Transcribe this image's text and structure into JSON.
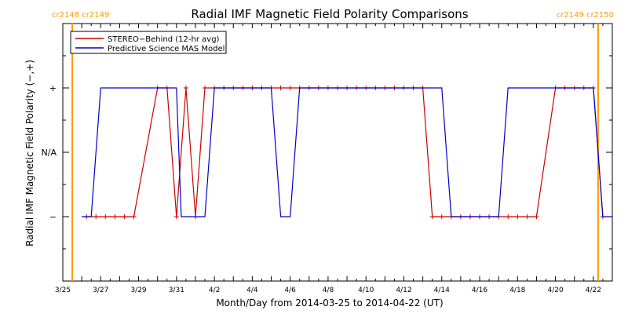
{
  "chart_data": {
    "type": "line",
    "title": "Radial IMF Magnetic Field Polarity Comparisons",
    "xlabel": "Month/Day from 2014-03-25 to 2014-04-22 (UT)",
    "ylabel": "Radial IMF Magnetic Field Polarity (−,+)",
    "x_unit": "days from 2014-03-25",
    "xlim": [
      0,
      29
    ],
    "x_ticks": [
      {
        "x": 0,
        "label": "3/25"
      },
      {
        "x": 2,
        "label": "3/27"
      },
      {
        "x": 4,
        "label": "3/29"
      },
      {
        "x": 6,
        "label": "3/31"
      },
      {
        "x": 8,
        "label": "4/2"
      },
      {
        "x": 10,
        "label": "4/4"
      },
      {
        "x": 12,
        "label": "4/6"
      },
      {
        "x": 14,
        "label": "4/8"
      },
      {
        "x": 16,
        "label": "4/10"
      },
      {
        "x": 18,
        "label": "4/12"
      },
      {
        "x": 20,
        "label": "4/14"
      },
      {
        "x": 22,
        "label": "4/16"
      },
      {
        "x": 24,
        "label": "4/18"
      },
      {
        "x": 26,
        "label": "4/20"
      },
      {
        "x": 28,
        "label": "4/22"
      }
    ],
    "y_ticks": [
      {
        "y": 1,
        "label": "+"
      },
      {
        "y": 0,
        "label": "N/A"
      },
      {
        "y": -1,
        "label": "−"
      }
    ],
    "ylim": [
      -2,
      2
    ],
    "markers": [
      {
        "x": 0.5,
        "label": "cr2148 cr2149"
      },
      {
        "x": 28.25,
        "label": "cr2149 cr2150"
      }
    ],
    "legend_position": "top-left",
    "series": [
      {
        "name": "STEREO−Behind (12-hr avg)",
        "color": "#cc0000",
        "points": [
          [
            1.25,
            -1
          ],
          [
            1.75,
            -1
          ],
          [
            2.25,
            -1
          ],
          [
            2.75,
            -1
          ],
          [
            3.25,
            -1
          ],
          [
            3.75,
            -1
          ],
          [
            5.0,
            1
          ],
          [
            5.5,
            1
          ],
          [
            6.0,
            -1
          ],
          [
            6.5,
            1
          ],
          [
            7.0,
            -1
          ],
          [
            7.5,
            1
          ],
          [
            8.0,
            1
          ],
          [
            8.5,
            1
          ],
          [
            9.0,
            1
          ],
          [
            9.5,
            1
          ],
          [
            10.0,
            1
          ],
          [
            10.5,
            1
          ],
          [
            11.0,
            1
          ],
          [
            11.5,
            1
          ],
          [
            12.0,
            1
          ],
          [
            12.5,
            1
          ],
          [
            13.0,
            1
          ],
          [
            13.5,
            1
          ],
          [
            14.0,
            1
          ],
          [
            14.5,
            1
          ],
          [
            15.0,
            1
          ],
          [
            15.5,
            1
          ],
          [
            16.0,
            1
          ],
          [
            16.5,
            1
          ],
          [
            17.0,
            1
          ],
          [
            17.5,
            1
          ],
          [
            18.0,
            1
          ],
          [
            18.5,
            1
          ],
          [
            19.0,
            1
          ],
          [
            19.5,
            -1
          ],
          [
            20.0,
            -1
          ],
          [
            20.5,
            -1
          ],
          [
            21.0,
            -1
          ],
          [
            21.5,
            -1
          ],
          [
            22.0,
            -1
          ],
          [
            22.5,
            -1
          ],
          [
            23.0,
            -1
          ],
          [
            23.5,
            -1
          ],
          [
            24.0,
            -1
          ],
          [
            24.5,
            -1
          ],
          [
            25.0,
            -1
          ],
          [
            26.0,
            1
          ],
          [
            26.5,
            1
          ],
          [
            27.0,
            1
          ],
          [
            27.5,
            1
          ],
          [
            28.0,
            1
          ],
          [
            28.5,
            -1
          ]
        ]
      },
      {
        "name": "Predictive Science MAS Model",
        "color": "#0000cc",
        "points": [
          [
            1.0,
            -1
          ],
          [
            1.5,
            -1
          ],
          [
            2.0,
            1
          ],
          [
            2.5,
            1
          ],
          [
            3.0,
            1
          ],
          [
            3.5,
            1
          ],
          [
            4.0,
            1
          ],
          [
            4.5,
            1
          ],
          [
            5.0,
            1
          ],
          [
            5.5,
            1
          ],
          [
            6.0,
            1
          ],
          [
            6.25,
            -1
          ],
          [
            6.5,
            -1
          ],
          [
            7.5,
            -1
          ],
          [
            8.0,
            1
          ],
          [
            8.5,
            1
          ],
          [
            9.0,
            1
          ],
          [
            9.5,
            1
          ],
          [
            10.0,
            1
          ],
          [
            10.5,
            1
          ],
          [
            11.0,
            1
          ],
          [
            11.5,
            -1
          ],
          [
            12.0,
            -1
          ],
          [
            12.5,
            1
          ],
          [
            13.0,
            1
          ],
          [
            13.5,
            1
          ],
          [
            14.0,
            1
          ],
          [
            14.5,
            1
          ],
          [
            15.0,
            1
          ],
          [
            15.5,
            1
          ],
          [
            16.0,
            1
          ],
          [
            16.5,
            1
          ],
          [
            17.0,
            1
          ],
          [
            17.5,
            1
          ],
          [
            18.0,
            1
          ],
          [
            18.5,
            1
          ],
          [
            19.0,
            1
          ],
          [
            19.5,
            1
          ],
          [
            20.0,
            1
          ],
          [
            20.5,
            -1
          ],
          [
            21.0,
            -1
          ],
          [
            21.5,
            -1
          ],
          [
            22.0,
            -1
          ],
          [
            22.5,
            -1
          ],
          [
            23.0,
            -1
          ],
          [
            23.5,
            1
          ],
          [
            24.0,
            1
          ],
          [
            24.5,
            1
          ],
          [
            25.0,
            1
          ],
          [
            25.5,
            1
          ],
          [
            26.0,
            1
          ],
          [
            26.5,
            1
          ],
          [
            27.0,
            1
          ],
          [
            27.5,
            1
          ],
          [
            28.0,
            1
          ],
          [
            28.5,
            -1
          ],
          [
            29.0,
            -1
          ]
        ]
      }
    ]
  }
}
